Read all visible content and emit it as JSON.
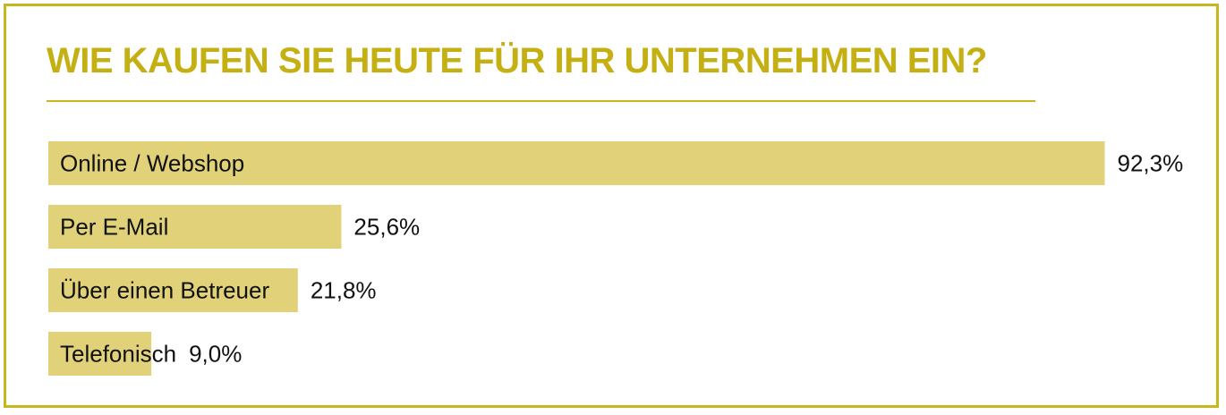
{
  "title": "WIE KAUFEN SIE HEUTE FÜR IHR UNTERNEHMEN EIN?",
  "colors": {
    "accent": "#c9b51c",
    "title": "#c5b013",
    "bar": "#e1d27a",
    "text": "#111111"
  },
  "chart_data": {
    "type": "bar",
    "orientation": "horizontal",
    "title": "WIE KAUFEN SIE HEUTE FÜR IHR UNTERNEHMEN EIN?",
    "xlabel": "",
    "ylabel": "",
    "xlim": [
      0,
      100
    ],
    "grid": false,
    "legend": "none",
    "categories": [
      "Online / Webshop",
      "Per E-Mail",
      "Über einen Betreuer",
      "Telefonisch"
    ],
    "values": [
      92.3,
      25.6,
      21.8,
      9.0
    ],
    "value_labels": [
      "92,3%",
      "25,6%",
      "21,8%",
      "9,0%"
    ]
  }
}
